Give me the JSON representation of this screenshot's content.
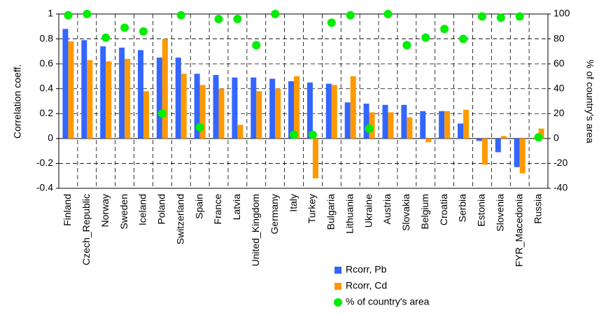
{
  "chart_data": {
    "type": "bar",
    "ylabel": "Correlation coeff.",
    "y2label": "% of country's area",
    "categories": [
      "Finland",
      "Czech_Republic",
      "Norway",
      "Sweden",
      "Iceland",
      "Poland",
      "Switzerland",
      "Spain",
      "France",
      "Latvia",
      "United_Kingdom",
      "Germany",
      "Italy",
      "Turkey",
      "Bulgaria",
      "Lithuania",
      "Ukraine",
      "Austria",
      "Slovakia",
      "Belgium",
      "Croatia",
      "Serbia",
      "Estonia",
      "Slovenia",
      "FYR_Macedonia",
      "Russia"
    ],
    "series": [
      {
        "name": "Rcorr, Pb",
        "type": "bar",
        "color": "#3366ff",
        "values": [
          0.88,
          0.79,
          0.74,
          0.73,
          0.71,
          0.65,
          0.65,
          0.52,
          0.51,
          0.49,
          0.49,
          0.48,
          0.46,
          0.45,
          0.44,
          0.29,
          0.28,
          0.27,
          0.27,
          0.22,
          0.22,
          0.12,
          -0.02,
          -0.11,
          -0.23,
          null
        ]
      },
      {
        "name": "Rcorr, Cd",
        "type": "bar",
        "color": "#ff9900",
        "values": [
          0.78,
          0.63,
          0.62,
          0.64,
          0.38,
          0.8,
          0.52,
          0.43,
          0.4,
          0.11,
          0.38,
          0.4,
          0.5,
          -0.32,
          0.43,
          0.5,
          0.21,
          0.21,
          0.17,
          -0.03,
          0.22,
          0.23,
          -0.21,
          0.02,
          -0.28,
          0.08
        ]
      },
      {
        "name": "% of country's area",
        "type": "scatter",
        "axis": "y2",
        "color": "#00ee00",
        "values": [
          99,
          100,
          81,
          89,
          86,
          20,
          99,
          9,
          96,
          96,
          75,
          100,
          3,
          3,
          93,
          99,
          8,
          100,
          75,
          81,
          88,
          80,
          98,
          97,
          98,
          1
        ]
      }
    ],
    "ylim": [
      -0.4,
      1
    ],
    "yticks": [
      -0.4,
      -0.2,
      0,
      0.2,
      0.4,
      0.6,
      0.8,
      1
    ],
    "y2lim": [
      -40,
      100
    ],
    "y2ticks": [
      -40,
      -20,
      0,
      20,
      40,
      60,
      80,
      100
    ],
    "grid": true
  }
}
